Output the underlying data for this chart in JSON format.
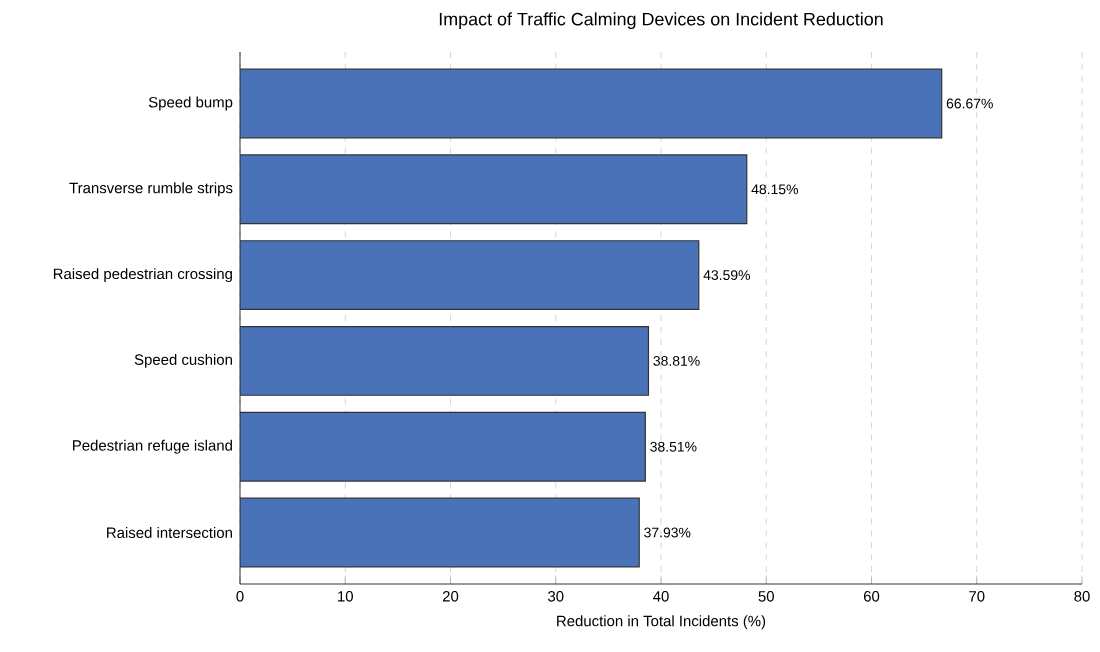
{
  "chart_data": {
    "type": "bar",
    "orientation": "horizontal",
    "title": "Impact of Traffic Calming Devices on Incident Reduction",
    "xlabel": "Reduction in Total Incidents (%)",
    "categories": [
      "Speed bump",
      "Transverse rumble strips",
      "Raised pedestrian crossing",
      "Speed cushion",
      "Pedestrian refuge island",
      "Raised intersection"
    ],
    "values": [
      66.67,
      48.15,
      43.59,
      38.81,
      38.51,
      37.93
    ],
    "value_labels": [
      "66.67%",
      "48.15%",
      "43.59%",
      "38.81%",
      "38.51%",
      "37.93%"
    ],
    "color": "#4a72b8",
    "xlim": [
      0,
      80
    ],
    "xticks": [
      0,
      10,
      20,
      30,
      40,
      50,
      60,
      70,
      80
    ],
    "grid": "x"
  }
}
